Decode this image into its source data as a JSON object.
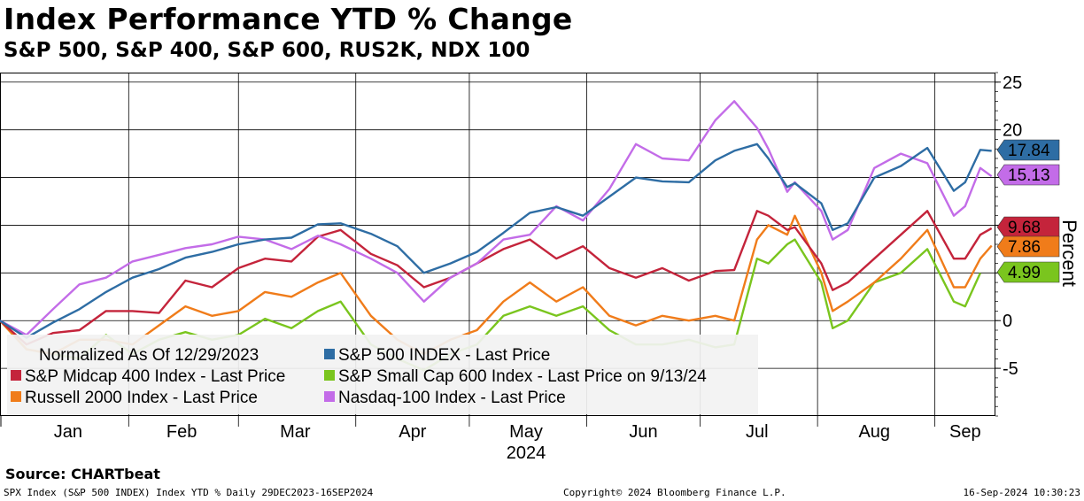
{
  "title": "Index Performance YTD % Change",
  "subtitle": "S&P 500, S&P 400, S&P 600, RUS2K, NDX 100",
  "source": "Source: CHARTbeat",
  "footer": {
    "left": "SPX Index (S&P 500 INDEX) Index YTD %  Daily 29DEC2023-16SEP2024",
    "center": "Copyright© 2024 Bloomberg Finance L.P.",
    "right": "16-Sep-2024 10:30:23"
  },
  "chart_data": {
    "type": "line",
    "y_axis_label": "Percent",
    "ylim": [
      -10,
      26
    ],
    "y_ticks": [
      -5,
      0,
      5,
      10,
      15,
      20,
      25
    ],
    "x_month_labels": [
      "Jan",
      "Feb",
      "Mar",
      "Apr",
      "May",
      "Jun",
      "Jul",
      "Aug",
      "Sep"
    ],
    "x_year_label": "2024",
    "grid": true,
    "legend_position": "bottom-left",
    "legend_note": "Normalized As Of 12/29/2023",
    "series": [
      {
        "name": "S&P 500 INDEX - Last Price",
        "color": "#2e6da4",
        "last_value": "17.84",
        "x": [
          "2023-12-29",
          "2024-01-05",
          "2024-01-12",
          "2024-01-19",
          "2024-01-26",
          "2024-02-02",
          "2024-02-09",
          "2024-02-16",
          "2024-02-23",
          "2024-03-01",
          "2024-03-08",
          "2024-03-15",
          "2024-03-22",
          "2024-03-28",
          "2024-04-05",
          "2024-04-12",
          "2024-04-19",
          "2024-04-26",
          "2024-05-03",
          "2024-05-10",
          "2024-05-17",
          "2024-05-24",
          "2024-05-31",
          "2024-06-07",
          "2024-06-14",
          "2024-06-21",
          "2024-06-28",
          "2024-07-05",
          "2024-07-10",
          "2024-07-16",
          "2024-07-19",
          "2024-07-24",
          "2024-07-26",
          "2024-08-02",
          "2024-08-05",
          "2024-08-09",
          "2024-08-16",
          "2024-08-23",
          "2024-08-30",
          "2024-09-06",
          "2024-09-09",
          "2024-09-13",
          "2024-09-16"
        ],
        "values": [
          0,
          -1.8,
          -0.2,
          1.2,
          3.0,
          4.5,
          5.4,
          6.6,
          7.2,
          8.0,
          8.5,
          8.7,
          10.1,
          10.2,
          9.1,
          7.8,
          5.0,
          6.0,
          7.2,
          9.2,
          11.3,
          11.9,
          11.0,
          13.0,
          15.0,
          14.6,
          14.5,
          16.8,
          17.8,
          18.5,
          17.0,
          14.0,
          14.4,
          12.3,
          9.5,
          10.2,
          15.0,
          16.2,
          18.1,
          13.6,
          14.5,
          17.9,
          17.8
        ]
      },
      {
        "name": "S&P Midcap 400 Index - Last Price",
        "color": "#c4243b",
        "last_value": "9.68",
        "x": [
          "2023-12-29",
          "2024-01-05",
          "2024-01-12",
          "2024-01-19",
          "2024-01-26",
          "2024-02-02",
          "2024-02-09",
          "2024-02-16",
          "2024-02-23",
          "2024-03-01",
          "2024-03-08",
          "2024-03-15",
          "2024-03-22",
          "2024-03-28",
          "2024-04-05",
          "2024-04-12",
          "2024-04-19",
          "2024-04-26",
          "2024-05-03",
          "2024-05-10",
          "2024-05-17",
          "2024-05-24",
          "2024-05-31",
          "2024-06-07",
          "2024-06-14",
          "2024-06-21",
          "2024-06-28",
          "2024-07-05",
          "2024-07-10",
          "2024-07-16",
          "2024-07-19",
          "2024-07-24",
          "2024-07-26",
          "2024-08-02",
          "2024-08-05",
          "2024-08-09",
          "2024-08-16",
          "2024-08-23",
          "2024-08-30",
          "2024-09-06",
          "2024-09-09",
          "2024-09-13",
          "2024-09-16"
        ],
        "values": [
          0,
          -2.5,
          -1.3,
          -1.0,
          1.0,
          1.0,
          0.8,
          4.2,
          3.5,
          5.5,
          6.5,
          6.2,
          8.8,
          9.5,
          7.0,
          5.8,
          3.5,
          4.5,
          6.0,
          7.5,
          8.5,
          6.5,
          7.8,
          5.5,
          4.5,
          5.5,
          4.2,
          5.2,
          5.3,
          11.5,
          11.0,
          9.5,
          9.8,
          6.0,
          3.2,
          4.0,
          6.5,
          9.0,
          11.5,
          6.5,
          6.5,
          9.0,
          9.68
        ]
      },
      {
        "name": "S&P Small Cap 600 Index - Last Price on 9/13/24",
        "color": "#7ac51e",
        "last_value": "4.99",
        "x": [
          "2023-12-29",
          "2024-01-05",
          "2024-01-12",
          "2024-01-19",
          "2024-01-26",
          "2024-02-02",
          "2024-02-09",
          "2024-02-16",
          "2024-02-23",
          "2024-03-01",
          "2024-03-08",
          "2024-03-15",
          "2024-03-22",
          "2024-03-28",
          "2024-04-05",
          "2024-04-12",
          "2024-04-19",
          "2024-04-26",
          "2024-05-03",
          "2024-05-10",
          "2024-05-17",
          "2024-05-24",
          "2024-05-31",
          "2024-06-07",
          "2024-06-14",
          "2024-06-21",
          "2024-06-28",
          "2024-07-05",
          "2024-07-10",
          "2024-07-16",
          "2024-07-19",
          "2024-07-24",
          "2024-07-26",
          "2024-08-02",
          "2024-08-05",
          "2024-08-09",
          "2024-08-16",
          "2024-08-23",
          "2024-08-30",
          "2024-09-06",
          "2024-09-09",
          "2024-09-13"
        ],
        "values": [
          0,
          -3.0,
          -3.5,
          -4.0,
          -1.5,
          -3.5,
          -2.0,
          -1.2,
          -2.0,
          -1.5,
          0.2,
          -0.8,
          1.0,
          2.0,
          -2.5,
          -4.0,
          -5.2,
          -3.5,
          -2.5,
          0.5,
          1.5,
          0.5,
          1.5,
          -1.0,
          -2.5,
          -2.5,
          -2.0,
          -2.8,
          -2.5,
          6.5,
          6.0,
          8.0,
          8.5,
          4.0,
          -0.8,
          0.0,
          4.0,
          5.0,
          7.5,
          2.0,
          1.5,
          4.99
        ]
      },
      {
        "name": "Russell 2000 Index - Last Price",
        "color": "#f07c1a",
        "last_value": "7.86",
        "x": [
          "2023-12-29",
          "2024-01-05",
          "2024-01-12",
          "2024-01-19",
          "2024-01-26",
          "2024-02-02",
          "2024-02-09",
          "2024-02-16",
          "2024-02-23",
          "2024-03-01",
          "2024-03-08",
          "2024-03-15",
          "2024-03-22",
          "2024-03-28",
          "2024-04-05",
          "2024-04-12",
          "2024-04-19",
          "2024-04-26",
          "2024-05-03",
          "2024-05-10",
          "2024-05-17",
          "2024-05-24",
          "2024-05-31",
          "2024-06-07",
          "2024-06-14",
          "2024-06-21",
          "2024-06-28",
          "2024-07-05",
          "2024-07-10",
          "2024-07-16",
          "2024-07-19",
          "2024-07-24",
          "2024-07-26",
          "2024-08-02",
          "2024-08-05",
          "2024-08-09",
          "2024-08-16",
          "2024-08-23",
          "2024-08-30",
          "2024-09-06",
          "2024-09-09",
          "2024-09-13",
          "2024-09-16"
        ],
        "values": [
          0,
          -3.0,
          -3.5,
          -2.0,
          -2.0,
          -2.5,
          -0.5,
          1.5,
          0.5,
          1.0,
          3.0,
          2.5,
          4.0,
          5.0,
          0.5,
          -2.0,
          -3.5,
          -2.0,
          -1.0,
          2.0,
          4.0,
          2.0,
          3.5,
          0.5,
          -0.5,
          0.5,
          0.0,
          0.5,
          0.0,
          8.5,
          10.0,
          9.0,
          11.0,
          5.0,
          1.0,
          2.0,
          4.0,
          6.5,
          9.5,
          3.5,
          3.5,
          6.5,
          7.86
        ]
      },
      {
        "name": "Nasdaq-100 Index - Last Price",
        "color": "#c36ce8",
        "last_value": "15.13",
        "x": [
          "2023-12-29",
          "2024-01-05",
          "2024-01-12",
          "2024-01-19",
          "2024-01-26",
          "2024-02-02",
          "2024-02-09",
          "2024-02-16",
          "2024-02-23",
          "2024-03-01",
          "2024-03-08",
          "2024-03-15",
          "2024-03-22",
          "2024-03-28",
          "2024-04-05",
          "2024-04-12",
          "2024-04-19",
          "2024-04-26",
          "2024-05-03",
          "2024-05-10",
          "2024-05-17",
          "2024-05-24",
          "2024-05-31",
          "2024-06-07",
          "2024-06-14",
          "2024-06-21",
          "2024-06-28",
          "2024-07-05",
          "2024-07-10",
          "2024-07-16",
          "2024-07-19",
          "2024-07-24",
          "2024-07-26",
          "2024-08-02",
          "2024-08-05",
          "2024-08-09",
          "2024-08-16",
          "2024-08-23",
          "2024-08-30",
          "2024-09-06",
          "2024-09-09",
          "2024-09-13",
          "2024-09-16"
        ],
        "values": [
          0,
          -1.5,
          1.2,
          3.8,
          4.5,
          6.2,
          6.9,
          7.6,
          8.0,
          8.8,
          8.5,
          7.5,
          8.9,
          8.0,
          6.5,
          5.0,
          2.0,
          4.5,
          6.0,
          8.5,
          9.0,
          12.0,
          10.5,
          13.8,
          18.5,
          17.0,
          16.8,
          21.0,
          23.0,
          20.2,
          18.0,
          13.5,
          14.5,
          11.5,
          8.5,
          9.5,
          16.0,
          17.5,
          16.5,
          11.0,
          12.0,
          16.0,
          15.13
        ]
      }
    ]
  }
}
